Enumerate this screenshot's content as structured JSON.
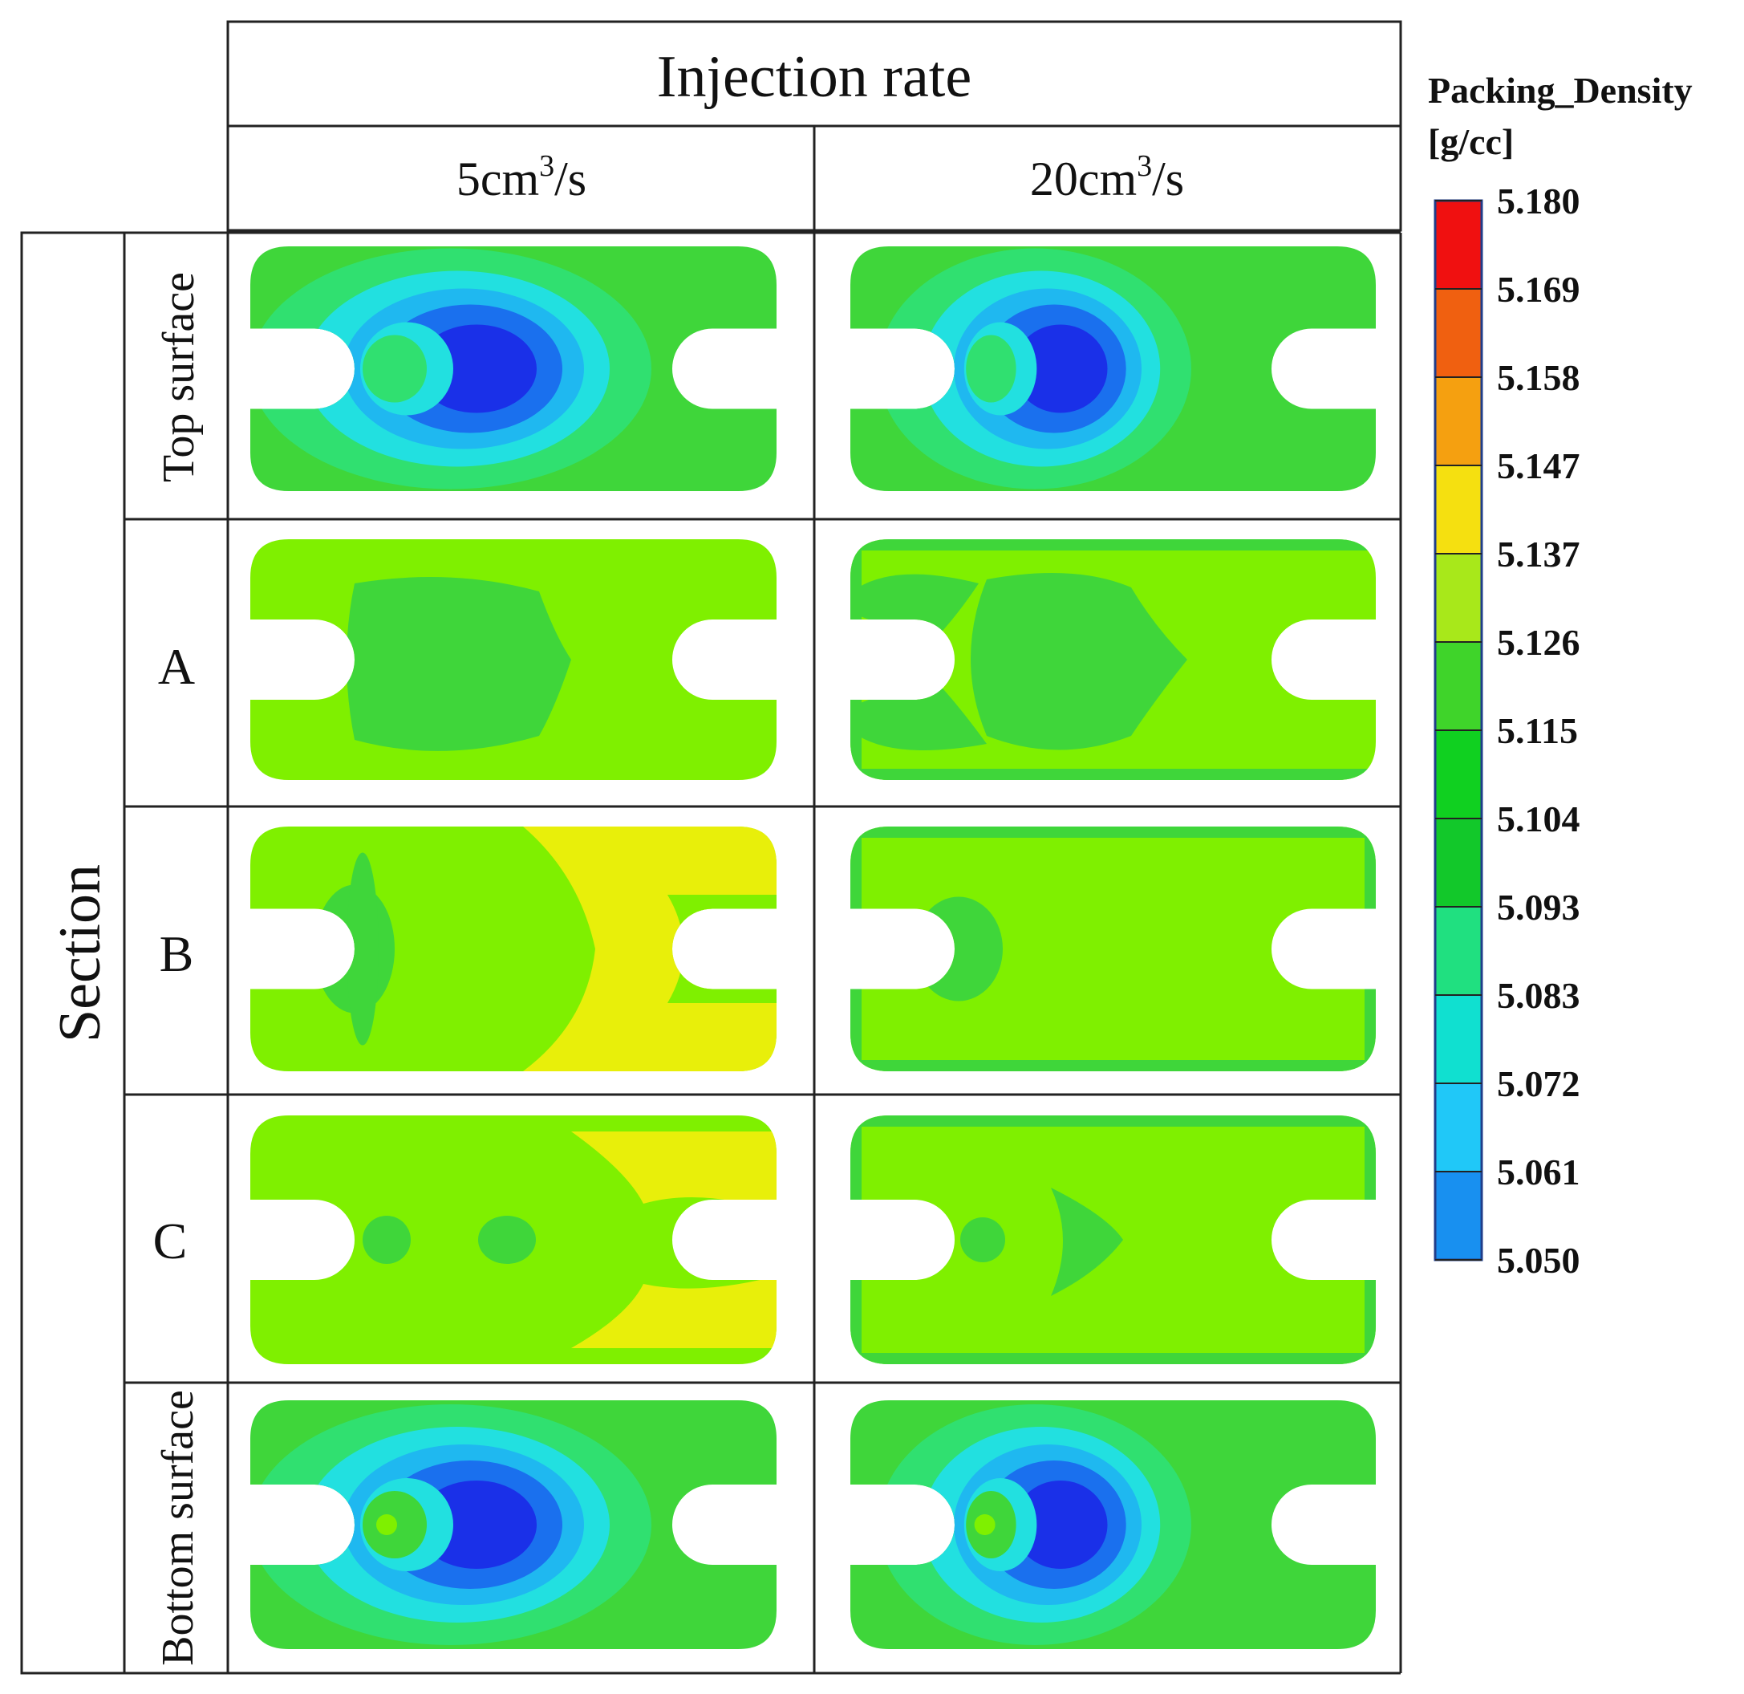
{
  "header": {
    "title": "Injection rate",
    "columns": [
      {
        "value": "5cm",
        "exp": "3",
        "unit": "/s"
      },
      {
        "value": "20cm",
        "exp": "3",
        "unit": "/s"
      }
    ]
  },
  "rows_header": {
    "title": "Section",
    "rows": [
      "Top surface",
      "A",
      "B",
      "C",
      "Bottom surface"
    ]
  },
  "legend": {
    "title_line1": "Packing_Density",
    "title_line2": "[g/cc]",
    "ticks": [
      "5.180",
      "5.169",
      "5.158",
      "5.147",
      "5.137",
      "5.126",
      "5.115",
      "5.104",
      "5.093",
      "5.083",
      "5.072",
      "5.061",
      "5.050"
    ],
    "colors": [
      "#f01010",
      "#f06010",
      "#f5a010",
      "#f5e010",
      "#a8e81a",
      "#3fd42a",
      "#10d020",
      "#12c82a",
      "#20e080",
      "#10e0d0",
      "#20c8f8",
      "#1890f0",
      "#1830f0"
    ]
  },
  "colors": {
    "green": "#3fd63a",
    "lime": "#7ff000",
    "yellow": "#e8ef0a",
    "pale_green": "#30e070",
    "cyan": "#22e0e0",
    "light_blue": "#1fb8f0",
    "blue": "#1a70ee",
    "dark_blue": "#1a30e8"
  }
}
